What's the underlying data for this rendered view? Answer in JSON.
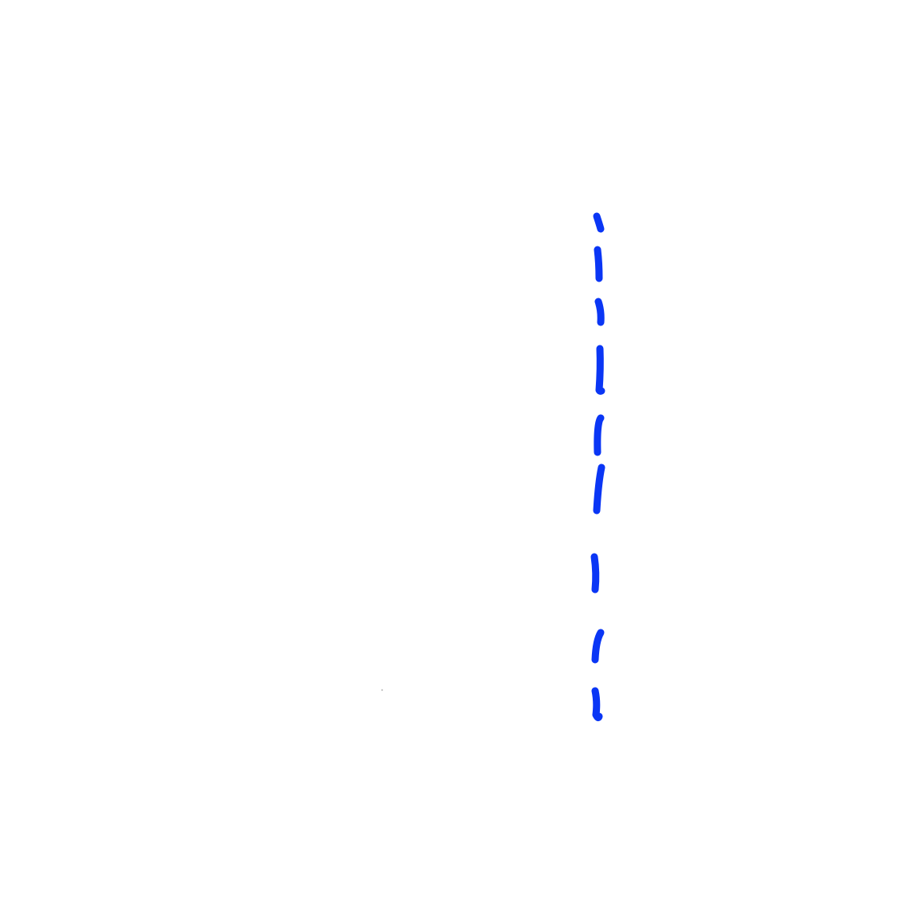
{
  "canvas": {
    "background_color": "#ffffff"
  },
  "drawing": {
    "stroke_color": "#0a36f5",
    "style": "hand-drawn dashed vertical line",
    "dash_count": 9,
    "faint_mark_color": "#c8c8c8"
  }
}
